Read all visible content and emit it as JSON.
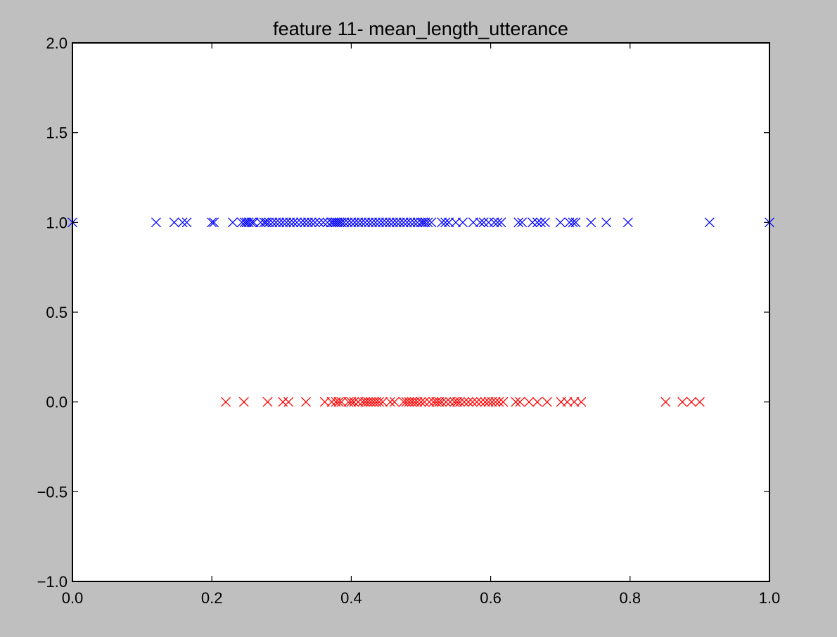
{
  "chart_data": {
    "type": "scatter",
    "title": "feature 11- mean_length_utterance",
    "xlabel": "",
    "ylabel": "",
    "xlim": [
      0.0,
      1.0
    ],
    "ylim": [
      -1.0,
      2.0
    ],
    "x_ticks": [
      "0.0",
      "0.2",
      "0.4",
      "0.6",
      "0.8",
      "1.0"
    ],
    "x_tick_values": [
      0.0,
      0.2,
      0.4,
      0.6,
      0.8,
      1.0
    ],
    "y_ticks": [
      "−1.0",
      "−0.5",
      "0.0",
      "0.5",
      "1.0",
      "1.5",
      "2.0"
    ],
    "y_tick_values": [
      -1.0,
      -0.5,
      0.0,
      0.5,
      1.0,
      1.5,
      2.0
    ],
    "grid": false,
    "marker": "x",
    "series": [
      {
        "color": "#0000ff",
        "y": 1.0,
        "x": [
          0.0,
          0.12,
          0.146,
          0.158,
          0.164,
          0.2,
          0.203,
          0.23,
          0.243,
          0.247,
          0.25,
          0.253,
          0.257,
          0.26,
          0.27,
          0.275,
          0.278,
          0.282,
          0.287,
          0.292,
          0.297,
          0.302,
          0.307,
          0.312,
          0.317,
          0.322,
          0.328,
          0.333,
          0.338,
          0.343,
          0.348,
          0.354,
          0.36,
          0.366,
          0.371,
          0.374,
          0.377,
          0.38,
          0.383,
          0.386,
          0.39,
          0.395,
          0.4,
          0.405,
          0.41,
          0.415,
          0.42,
          0.425,
          0.43,
          0.435,
          0.44,
          0.445,
          0.45,
          0.455,
          0.46,
          0.465,
          0.47,
          0.475,
          0.48,
          0.485,
          0.49,
          0.495,
          0.5,
          0.503,
          0.506,
          0.51,
          0.515,
          0.53,
          0.535,
          0.54,
          0.55,
          0.56,
          0.575,
          0.585,
          0.59,
          0.597,
          0.605,
          0.61,
          0.615,
          0.64,
          0.645,
          0.66,
          0.667,
          0.672,
          0.678,
          0.7,
          0.713,
          0.718,
          0.722,
          0.744,
          0.766,
          0.797,
          0.914,
          1.0
        ]
      },
      {
        "color": "#ff0000",
        "y": 0.0,
        "x": [
          0.22,
          0.246,
          0.28,
          0.302,
          0.31,
          0.335,
          0.362,
          0.372,
          0.378,
          0.382,
          0.386,
          0.396,
          0.4,
          0.404,
          0.41,
          0.416,
          0.42,
          0.424,
          0.428,
          0.432,
          0.436,
          0.44,
          0.445,
          0.456,
          0.462,
          0.475,
          0.479,
          0.483,
          0.487,
          0.491,
          0.495,
          0.5,
          0.505,
          0.512,
          0.518,
          0.522,
          0.526,
          0.53,
          0.536,
          0.542,
          0.548,
          0.552,
          0.556,
          0.562,
          0.568,
          0.574,
          0.58,
          0.586,
          0.592,
          0.597,
          0.602,
          0.607,
          0.612,
          0.618,
          0.636,
          0.642,
          0.655,
          0.667,
          0.681,
          0.701,
          0.71,
          0.72,
          0.73,
          0.851,
          0.875,
          0.888,
          0.9
        ]
      }
    ]
  }
}
